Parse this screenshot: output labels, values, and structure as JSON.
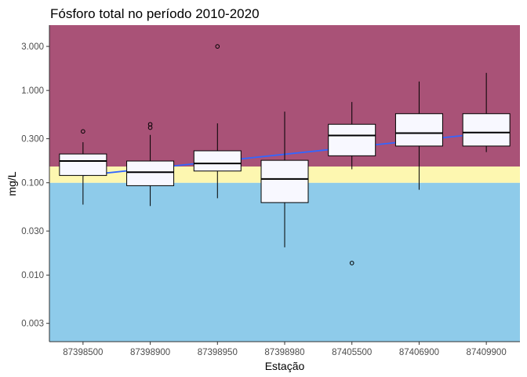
{
  "chart_data": {
    "type": "boxplot",
    "title": "Fósforo total no período 2010-2020",
    "xlabel": "Estação",
    "ylabel": "mg/L",
    "y_scale": "log10",
    "ylim": [
      0.0019,
      5.1
    ],
    "y_ticks": [
      {
        "value": 0.003,
        "label": "0.003"
      },
      {
        "value": 0.01,
        "label": "0.010"
      },
      {
        "value": 0.03,
        "label": "0.030"
      },
      {
        "value": 0.1,
        "label": "0.100"
      },
      {
        "value": 0.3,
        "label": "0.300"
      },
      {
        "value": 1.0,
        "label": "1.000"
      },
      {
        "value": 3.0,
        "label": "3.000"
      }
    ],
    "background_bands": [
      {
        "from": 0.0019,
        "to": 0.1,
        "color": "#8ecbea"
      },
      {
        "from": 0.1,
        "to": 0.15,
        "color": "#fdf7b0"
      },
      {
        "from": 0.15,
        "to": 5.1,
        "color": "#a95277"
      }
    ],
    "categories": [
      "87398500",
      "87398900",
      "87398950",
      "87398980",
      "87405500",
      "87406900",
      "87409900"
    ],
    "boxes": [
      {
        "whisker_low": 0.058,
        "q1": 0.12,
        "median": 0.172,
        "q3": 0.205,
        "whisker_high": 0.275,
        "outliers": [
          0.36
        ]
      },
      {
        "whisker_low": 0.056,
        "q1": 0.093,
        "median": 0.13,
        "q3": 0.172,
        "whisker_high": 0.33,
        "outliers": [
          0.395,
          0.43
        ]
      },
      {
        "whisker_low": 0.068,
        "q1": 0.134,
        "median": 0.162,
        "q3": 0.222,
        "whisker_high": 0.44,
        "outliers": [
          3.0
        ]
      },
      {
        "whisker_low": 0.02,
        "q1": 0.061,
        "median": 0.11,
        "q3": 0.175,
        "whisker_high": 0.59,
        "outliers": []
      },
      {
        "whisker_low": 0.14,
        "q1": 0.196,
        "median": 0.325,
        "q3": 0.43,
        "whisker_high": 0.75,
        "outliers": [
          0.0135
        ]
      },
      {
        "whisker_low": 0.084,
        "q1": 0.25,
        "median": 0.345,
        "q3": 0.56,
        "whisker_high": 1.25,
        "outliers": []
      },
      {
        "whisker_low": 0.215,
        "q1": 0.25,
        "median": 0.35,
        "q3": 0.56,
        "whisker_high": 1.55,
        "outliers": []
      }
    ],
    "trend_line": {
      "color": "#3366ff",
      "from": {
        "category": "87398500",
        "y": 0.12
      },
      "to": {
        "category": "87409900",
        "y": 0.345
      }
    },
    "grid": false,
    "legend": "none",
    "colors": {
      "box_fill": "#f8f8ff",
      "box_stroke": "#000000",
      "trend": "#3366ff"
    }
  }
}
